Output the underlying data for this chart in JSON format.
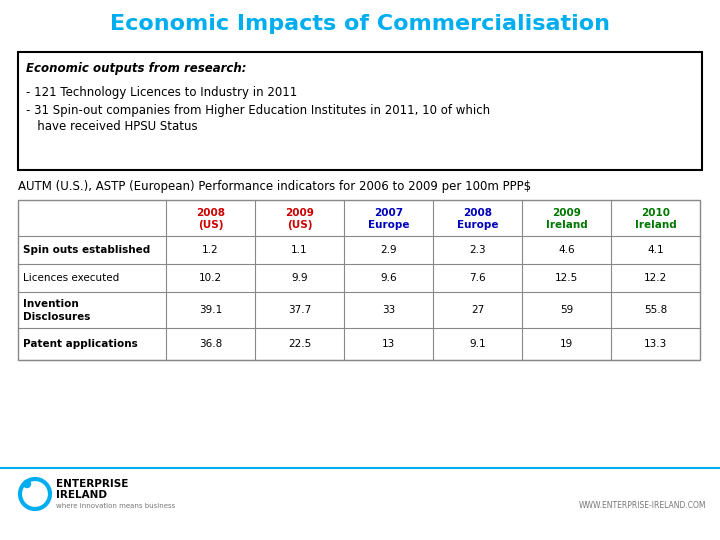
{
  "title": "Economic Impacts of Commercialisation",
  "title_color": "#00AEEF",
  "title_fontsize": 16,
  "box_text_header": "Economic outputs from research:",
  "box_bullet1": "- 121 Technology Licences to Industry in 2011",
  "box_bullet2_line1": "- 31 Spin-out companies from Higher Education Institutes in 2011, 10 of which",
  "box_bullet2_line2": "   have received HPSU Status",
  "table_intro": "AUTM (U.S.), ASTP (European) Performance indicators for 2006 to 2009 per 100m PPP$",
  "col_headers": [
    [
      "2008",
      "(US)"
    ],
    [
      "2009",
      "(US)"
    ],
    [
      "2007",
      "Europe"
    ],
    [
      "2008",
      "Europe"
    ],
    [
      "2009",
      "Ireland"
    ],
    [
      "2010",
      "Ireland"
    ]
  ],
  "col_header_colors": [
    "#CC0000",
    "#CC0000",
    "#0000BB",
    "#0000BB",
    "#007700",
    "#007700"
  ],
  "row_labels": [
    "Spin outs established",
    "Licences executed",
    "Invention\nDisclosures",
    "Patent applications"
  ],
  "row_label_bold": [
    true,
    false,
    true,
    true
  ],
  "table_data": [
    [
      "1.2",
      "1.1",
      "2.9",
      "2.3",
      "4.6",
      "4.1"
    ],
    [
      "10.2",
      "9.9",
      "9.6",
      "7.6",
      "12.5",
      "12.2"
    ],
    [
      "39.1",
      "37.7",
      "33",
      "27",
      "59",
      "55.8"
    ],
    [
      "36.8",
      "22.5",
      "13",
      "9.1",
      "19",
      "13.3"
    ]
  ],
  "background_color": "#FFFFFF",
  "footer_text": "WWW.ENTERPRISE-IRELAND.COM",
  "footer_line_color": "#00AEEF",
  "border_color": "#888888"
}
